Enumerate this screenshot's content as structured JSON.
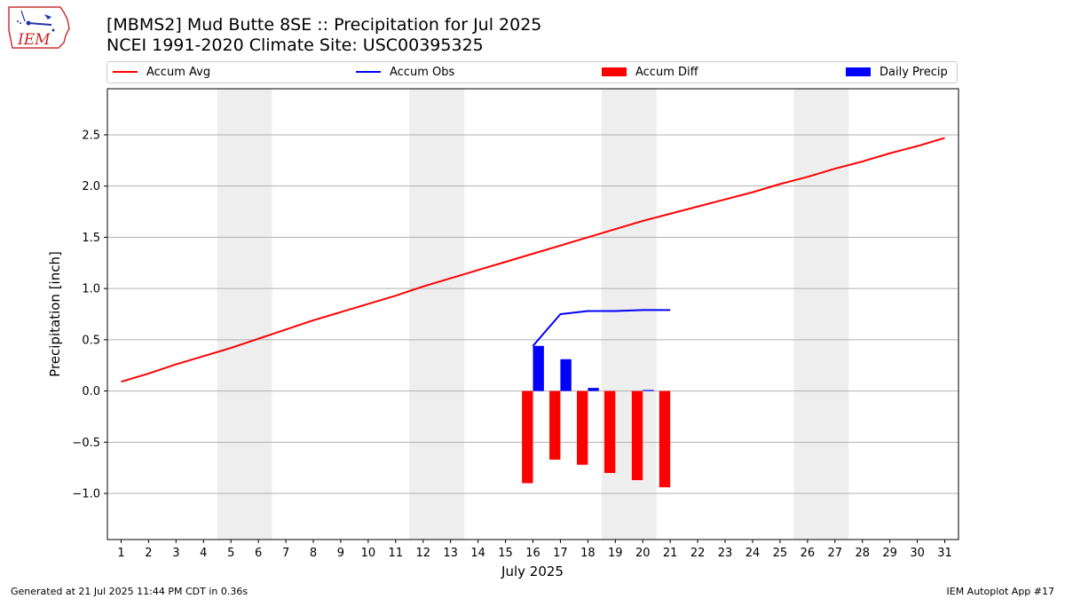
{
  "header": {
    "title_line1": "[MBMS2] Mud Butte 8SE :: Precipitation for Jul 2025",
    "title_line2": "NCEI 1991-2020 Climate Site: USC00395325"
  },
  "logo": {
    "text": "IEM",
    "icon": "iem-iowa-logo"
  },
  "legend": {
    "items": [
      {
        "label": "Accum Avg",
        "color": "#ff0000",
        "kind": "line"
      },
      {
        "label": "Accum Obs",
        "color": "#0000ff",
        "kind": "line"
      },
      {
        "label": "Accum Diff",
        "color": "#ff0000",
        "kind": "patch"
      },
      {
        "label": "Daily Precip",
        "color": "#0000ff",
        "kind": "patch"
      }
    ]
  },
  "footer": {
    "left": "Generated at 21 Jul 2025 11:44 PM CDT in 0.36s",
    "right": "IEM Autoplot App #17"
  },
  "chart_data": {
    "type": "line",
    "title": "[MBMS2] Mud Butte 8SE :: Precipitation for Jul 2025",
    "subtitle": "NCEI 1991-2020 Climate Site: USC00395325",
    "xlabel": "July 2025",
    "ylabel": "Precipitation [inch]",
    "xlim": [
      0.5,
      31.5
    ],
    "ylim": [
      -1.45,
      2.95
    ],
    "yticks": [
      -1.0,
      -0.5,
      0.0,
      0.5,
      1.0,
      1.5,
      2.0,
      2.5
    ],
    "ytick_labels": [
      "−1.0",
      "−0.5",
      "0.0",
      "0.5",
      "1.0",
      "1.5",
      "2.0",
      "2.5"
    ],
    "x": [
      1,
      2,
      3,
      4,
      5,
      6,
      7,
      8,
      9,
      10,
      11,
      12,
      13,
      14,
      15,
      16,
      17,
      18,
      19,
      20,
      21,
      22,
      23,
      24,
      25,
      26,
      27,
      28,
      29,
      30,
      31
    ],
    "grid": "horizontal",
    "weekend_shading": [
      [
        4.5,
        6.5
      ],
      [
        11.5,
        13.5
      ],
      [
        18.5,
        20.5
      ],
      [
        25.5,
        27.5
      ]
    ],
    "weekend_color": "#eeeeee",
    "series": [
      {
        "name": "Accum Avg",
        "kind": "line",
        "color": "#ff0000",
        "x": [
          1,
          2,
          3,
          4,
          5,
          6,
          7,
          8,
          9,
          10,
          11,
          12,
          13,
          14,
          15,
          16,
          17,
          18,
          19,
          20,
          21,
          22,
          23,
          24,
          25,
          26,
          27,
          28,
          29,
          30,
          31
        ],
        "values": [
          0.09,
          0.17,
          0.26,
          0.34,
          0.42,
          0.51,
          0.6,
          0.69,
          0.77,
          0.85,
          0.93,
          1.02,
          1.1,
          1.18,
          1.26,
          1.34,
          1.42,
          1.5,
          1.58,
          1.66,
          1.73,
          1.8,
          1.87,
          1.94,
          2.02,
          2.09,
          2.17,
          2.24,
          2.32,
          2.39,
          2.47
        ]
      },
      {
        "name": "Accum Obs",
        "kind": "line",
        "color": "#0000ff",
        "x": [
          16,
          17,
          18,
          19,
          20,
          21
        ],
        "values": [
          0.44,
          0.75,
          0.78,
          0.78,
          0.79,
          0.79
        ]
      },
      {
        "name": "Accum Diff",
        "kind": "bar",
        "color": "#ff0000",
        "x": [
          16,
          17,
          18,
          19,
          20,
          21
        ],
        "values": [
          -0.9,
          -0.67,
          -0.72,
          -0.8,
          -0.87,
          -0.94
        ]
      },
      {
        "name": "Daily Precip",
        "kind": "bar",
        "color": "#0000ff",
        "x": [
          16,
          17,
          18,
          19,
          20,
          21
        ],
        "values": [
          0.44,
          0.31,
          0.03,
          0.0,
          0.01,
          0.0
        ]
      }
    ]
  }
}
